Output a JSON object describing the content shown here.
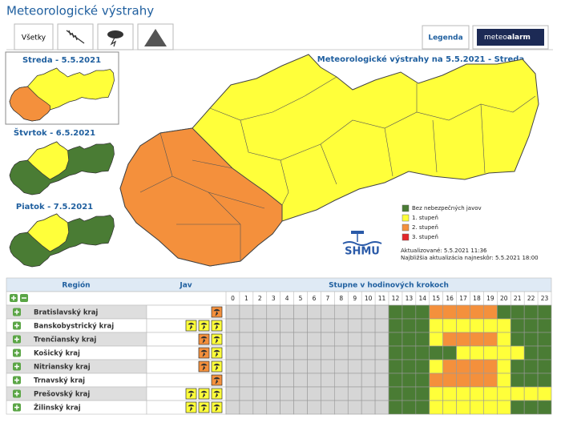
{
  "header": {
    "title": "Meteorologické výstrahy"
  },
  "tabs": [
    "Všetky"
  ],
  "buttons": {
    "legend": "Legenda",
    "logo_a": "meteo",
    "logo_b": "alarm"
  },
  "days": [
    "Streda - 5.5.2021",
    "Štvrtok - 6.5.2021",
    "Piatok - 7.5.2021"
  ],
  "map": {
    "title": "Meteorologické výstrahy na 5.5.2021 - Streda",
    "legend": [
      {
        "label": "Bez nebezpečných javov",
        "color": "#4a7c34"
      },
      {
        "label": "1. stupeň",
        "color": "#ffff3a"
      },
      {
        "label": "2. stupeň",
        "color": "#f4903c"
      },
      {
        "label": "3. stupeň",
        "color": "#e3262a"
      }
    ],
    "logo": "SHMU",
    "updated": "Aktualizované: 5.5.2021 11:36",
    "next": "Najbližšia aktualizácia najneskôr: 5.5.2021 18:00"
  },
  "table": {
    "headers": [
      "Región",
      "Jav",
      "Stupne v hodinových krokoch"
    ],
    "hours": [
      0,
      1,
      2,
      3,
      4,
      5,
      6,
      7,
      8,
      9,
      10,
      11,
      12,
      13,
      14,
      15,
      16,
      17,
      18,
      19,
      20,
      21,
      22,
      23
    ],
    "rows": [
      {
        "region": "Bratislavský kraj",
        "jav": [
          2
        ],
        "levels": [
          null,
          null,
          null,
          null,
          null,
          null,
          null,
          null,
          null,
          null,
          null,
          null,
          0,
          0,
          0,
          2,
          2,
          2,
          2,
          2,
          0,
          0,
          0,
          0
        ]
      },
      {
        "region": "Banskobystrický kraj",
        "jav": [
          1,
          1,
          1
        ],
        "levels": [
          null,
          null,
          null,
          null,
          null,
          null,
          null,
          null,
          null,
          null,
          null,
          null,
          0,
          0,
          0,
          1,
          1,
          1,
          1,
          1,
          1,
          0,
          0,
          0
        ]
      },
      {
        "region": "Trenčiansky kraj",
        "jav": [
          2,
          1
        ],
        "levels": [
          null,
          null,
          null,
          null,
          null,
          null,
          null,
          null,
          null,
          null,
          null,
          null,
          0,
          0,
          0,
          1,
          2,
          2,
          2,
          2,
          1,
          0,
          0,
          0
        ]
      },
      {
        "region": "Košický kraj",
        "jav": [
          2,
          1
        ],
        "levels": [
          null,
          null,
          null,
          null,
          null,
          null,
          null,
          null,
          null,
          null,
          null,
          null,
          0,
          0,
          0,
          0,
          0,
          1,
          1,
          1,
          1,
          1,
          0,
          0
        ]
      },
      {
        "region": "Nitriansky kraj",
        "jav": [
          2,
          1
        ],
        "levels": [
          null,
          null,
          null,
          null,
          null,
          null,
          null,
          null,
          null,
          null,
          null,
          null,
          0,
          0,
          0,
          1,
          2,
          2,
          2,
          2,
          1,
          0,
          0,
          0
        ]
      },
      {
        "region": "Trnavský kraj",
        "jav": [
          2
        ],
        "levels": [
          null,
          null,
          null,
          null,
          null,
          null,
          null,
          null,
          null,
          null,
          null,
          null,
          0,
          0,
          0,
          2,
          2,
          2,
          2,
          2,
          1,
          0,
          0,
          0
        ]
      },
      {
        "region": "Prešovský kraj",
        "jav": [
          1,
          1,
          1
        ],
        "levels": [
          null,
          null,
          null,
          null,
          null,
          null,
          null,
          null,
          null,
          null,
          null,
          null,
          0,
          0,
          0,
          1,
          1,
          1,
          1,
          1,
          1,
          1,
          1,
          1
        ]
      },
      {
        "region": "Žilinský kraj",
        "jav": [
          1,
          1,
          1
        ],
        "levels": [
          null,
          null,
          null,
          null,
          null,
          null,
          null,
          null,
          null,
          null,
          null,
          null,
          0,
          0,
          0,
          1,
          1,
          1,
          1,
          1,
          1,
          0,
          0,
          0
        ]
      }
    ]
  }
}
